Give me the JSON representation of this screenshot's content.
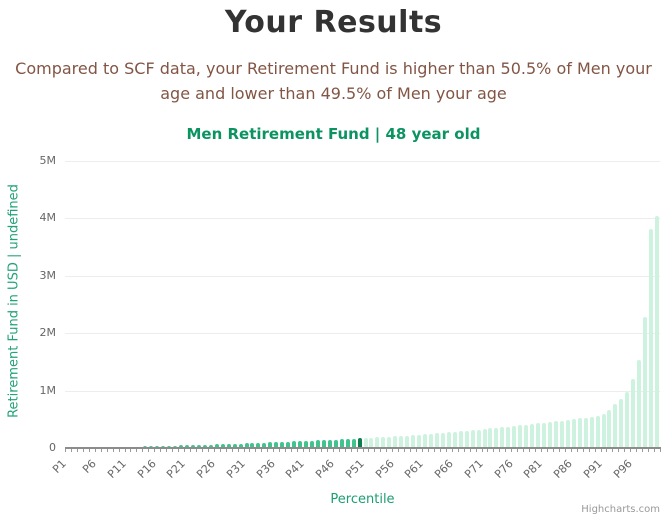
{
  "header": {
    "title": "Your Results",
    "subtitle_line1": "Compared to SCF data, your Retirement Fund is higher than 50.5% of Men your",
    "subtitle_line2": "age and lower than 49.5% of Men your age"
  },
  "chart_data": {
    "type": "bar",
    "title": "Men Retirement Fund | 48 year old",
    "xlabel": "Percentile",
    "ylabel": "Retirement Fund in USD | undefined",
    "credit": "Highcharts.com",
    "ylim": [
      0,
      5000000
    ],
    "ytick_values": [
      0,
      1000000,
      2000000,
      3000000,
      4000000,
      5000000
    ],
    "ytick_labels": [
      "0",
      "1M",
      "2M",
      "3M",
      "4M",
      "5M"
    ],
    "xtick_positions": [
      0,
      5,
      10,
      15,
      20,
      25,
      30,
      35,
      40,
      45,
      50,
      55,
      60,
      65,
      70,
      75,
      80,
      85,
      90,
      95
    ],
    "xtick_labels": [
      "P1",
      "P6",
      "P11",
      "P16",
      "P21",
      "P26",
      "P31",
      "P36",
      "P41",
      "P46",
      "P51",
      "P56",
      "P61",
      "P66",
      "P71",
      "P76",
      "P81",
      "P86",
      "P91",
      "P96"
    ],
    "category_prefix": "P",
    "values": [
      0,
      0,
      2000,
      5000,
      8000,
      10000,
      12000,
      14000,
      16000,
      18000,
      21000,
      23000,
      26000,
      28000,
      31000,
      34000,
      37000,
      40000,
      43000,
      46000,
      49000,
      52000,
      55000,
      58000,
      61000,
      64000,
      67000,
      70000,
      74000,
      78000,
      82000,
      86000,
      90000,
      94000,
      98000,
      102000,
      106000,
      110000,
      115000,
      119000,
      124000,
      128000,
      133000,
      138000,
      143000,
      148000,
      153000,
      158000,
      163000,
      168000,
      172000,
      178000,
      184000,
      190000,
      196000,
      203000,
      210000,
      217000,
      224000,
      232000,
      240000,
      248000,
      256000,
      265000,
      274000,
      283000,
      292000,
      301000,
      311000,
      321000,
      330000,
      341000,
      352000,
      363000,
      374000,
      385000,
      396000,
      407000,
      418000,
      429000,
      440000,
      452000,
      464000,
      476000,
      489000,
      502000,
      516000,
      530000,
      545000,
      560000,
      600000,
      660000,
      760000,
      860000,
      970000,
      1210000,
      1530000,
      2290000,
      3820000,
      4050000
    ],
    "highlight_index": 49,
    "highlight_category": "P50",
    "legend": false,
    "grid": "horizontal",
    "colors": {
      "bar_below_user": "#3fc48e",
      "bar_user": "#0c7d4c",
      "bar_above_user": "#cdf2e0",
      "chart_title": "#0c9362",
      "axis_title": "#1d9e72",
      "axis_labels": "#666666",
      "subtitle": "#825545",
      "title": "#333333",
      "gridline": "#ededed",
      "axis_line": "#8c8c8c",
      "credit": "#999999"
    }
  }
}
